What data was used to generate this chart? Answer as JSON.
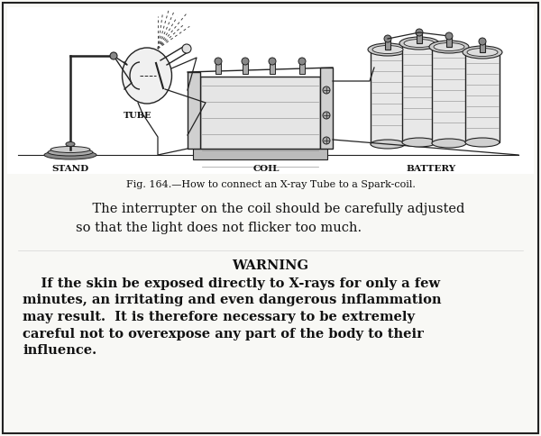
{
  "bg_color": "#f8f8f5",
  "border_color": "#222222",
  "fig_caption": "Fig. 164.—How to connect an X-ray Tube to a Spark-coil.",
  "para1_line1": "    The interrupter on the coil should be carefully adjusted",
  "para1_line2": "so that the light does not flicker too much.",
  "warning_title": "WARNING",
  "warn_line1": "    If the skin be exposed directly to X-rays for only a few",
  "warn_line2": "minutes, an irritating and even dangerous inflammation",
  "warn_line3": "may result.  It is therefore necessary to be extremely",
  "warn_line4": "careful not to overexpose any part of the body to their",
  "warn_line5": "influence.",
  "label_stand": "STAND",
  "label_tube": "TUBE",
  "label_coil": "COIL",
  "label_battery": "BATTERY",
  "text_color": "#111111",
  "line_color": "#222222"
}
